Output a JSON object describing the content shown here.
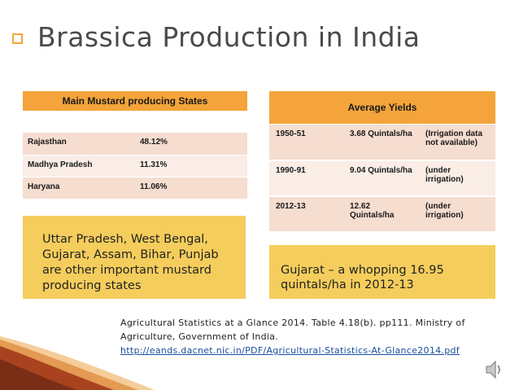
{
  "title": "Brassica Production in India",
  "left_header": "Main Mustard producing States",
  "right_header": "Average Yields",
  "states": [
    {
      "name": "Rajasthan",
      "share": "48.12%"
    },
    {
      "name": "Madhya Pradesh",
      "share": "11.31%"
    },
    {
      "name": "Haryana",
      "share": "11.06%"
    }
  ],
  "yields": [
    {
      "period": "1950-51",
      "yield": "3.68 Quintals/ha",
      "note": "(Irrigation data not available)"
    },
    {
      "period": "1990-91",
      "yield": "9.04 Quintals/ha",
      "note": "(under irrigation)"
    },
    {
      "period": "2012-13",
      "yield": "12.62 Quintals/ha",
      "note": "(under irrigation)"
    }
  ],
  "left_note": "Uttar Pradesh, West Bengal, Gujarat, Assam, Bihar, Punjab are other important mustard producing states",
  "right_note": "Gujarat – a whopping 16.95 quintals/ha in 2012-13",
  "source": {
    "text": "Agricultural Statistics at a Glance 2014. Table 4.18(b). pp111. Ministry of Agriculture, Government of India.",
    "link": "http://eands.dacnet.nic.in/PDF/Agricultural-Statistics-At-Glance2014.pdf"
  },
  "colors": {
    "header_orange": "#f4a43a",
    "note_yellow": "#f5cd5c",
    "row_pink": "#f5ddd0",
    "row_light": "#f9ede6",
    "link_blue": "#1a4e9c"
  },
  "icons": {
    "title_bullet": "hollow-square-bullet",
    "audio": "speaker-icon"
  }
}
